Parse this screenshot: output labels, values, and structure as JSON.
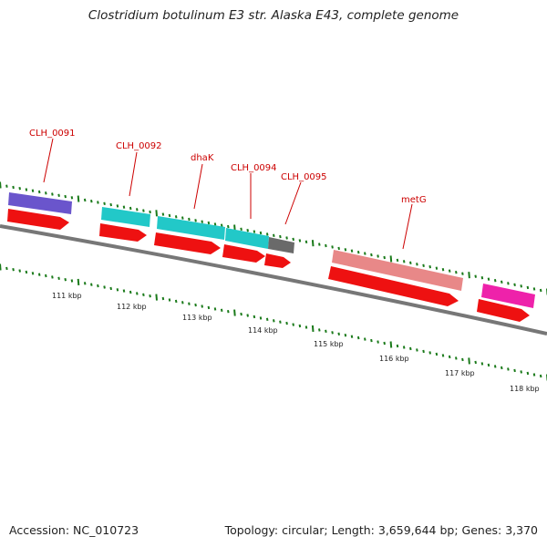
{
  "title": "Clostridium botulinum E3 str. Alaska E43, complete genome",
  "accession": "Accession: NC_010723",
  "summary": "Topology: circular; Length: 3,659,644 bp; Genes: 3,370",
  "colors": {
    "backbone": "#777777",
    "tick": "#1a7a1a",
    "cds": "#ee1111",
    "label": "#cc0000",
    "purple": "#6a55cc",
    "cyan": "#22c8c8",
    "gray": "#6a6a6a",
    "salmon": "#e88888",
    "magenta": "#ee22aa"
  },
  "scale_labels": [
    "111 kbp",
    "112 kbp",
    "113 kbp",
    "114 kbp",
    "115 kbp",
    "116 kbp",
    "117 kbp",
    "118 kbp"
  ],
  "gene_labels": [
    "CLH_0091",
    "CLH_0092",
    "dhaK",
    "CLH_0094",
    "CLH_0095",
    "metG"
  ]
}
